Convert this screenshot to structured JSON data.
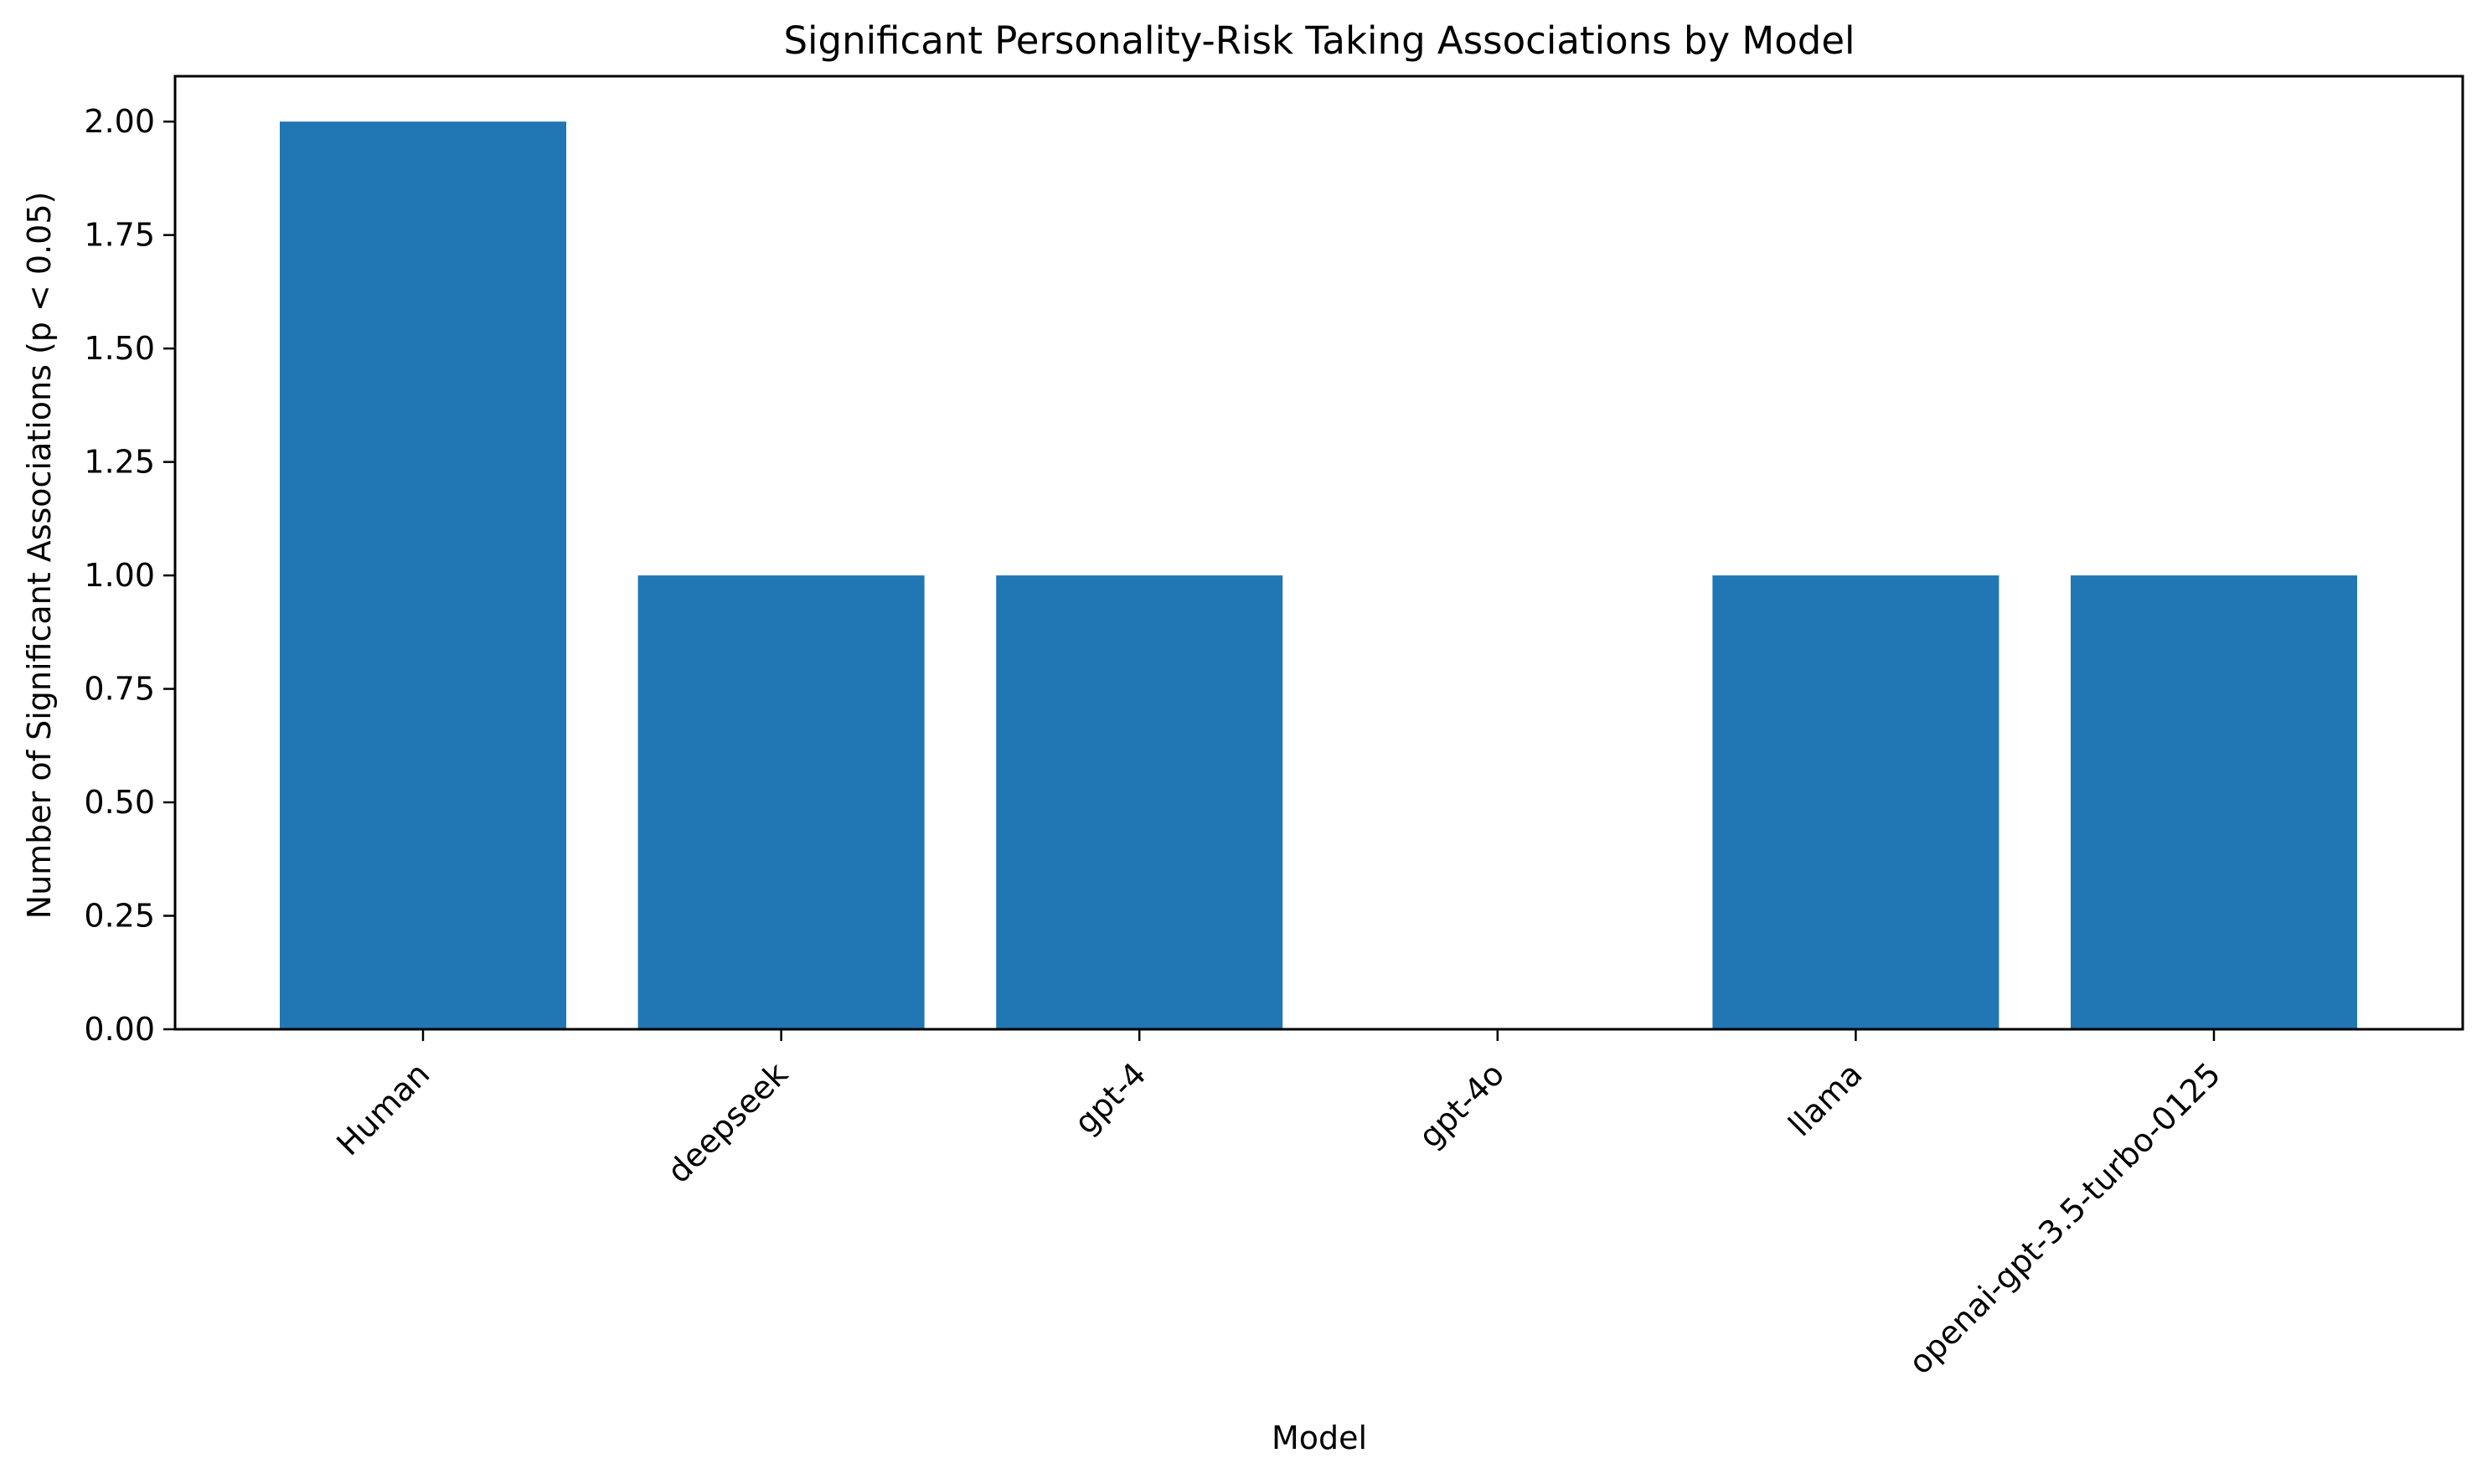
{
  "chart_data": {
    "type": "bar",
    "title": "Significant Personality-Risk Taking Associations by Model",
    "xlabel": "Model",
    "ylabel": "Number of Significant Associations (p < 0.05)",
    "categories": [
      "Human",
      "deepseek",
      "gpt-4",
      "gpt-4o",
      "llama",
      "openai-gpt-3.5-turbo-0125"
    ],
    "values": [
      2,
      1,
      1,
      0,
      1,
      1
    ],
    "ylim": [
      0,
      2.1
    ],
    "yticks": [
      "0.00",
      "0.25",
      "0.50",
      "0.75",
      "1.00",
      "1.25",
      "1.50",
      "1.75",
      "2.00"
    ],
    "grid": false,
    "legend": "none",
    "bar_color": "#2077b4"
  }
}
